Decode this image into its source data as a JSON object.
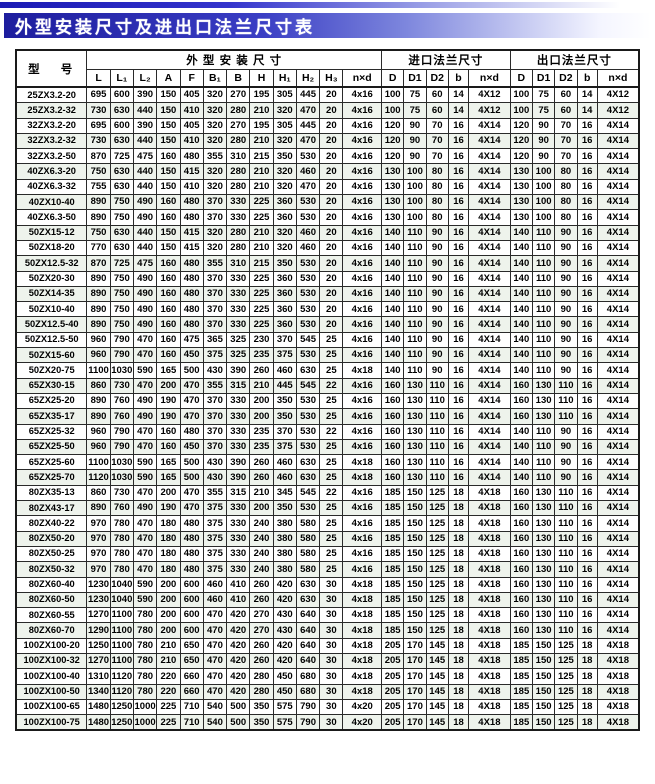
{
  "page": {
    "title": "外型安装尺寸及进出口法兰尺寸表"
  },
  "table": {
    "model_header": "型 号",
    "groups": [
      {
        "label": "外 型 安 装 尺 寸",
        "span": 12
      },
      {
        "label": "进口法兰尺寸",
        "span": 5
      },
      {
        "label": "出口法兰尺寸",
        "span": 5
      }
    ],
    "columns": [
      "L",
      "L₁",
      "L₂",
      "A",
      "F",
      "B₁",
      "B",
      "H",
      "H₁",
      "H₂",
      "H₃",
      "n×d",
      "D",
      "D1",
      "D2",
      "b",
      "n×d",
      "D",
      "D1",
      "D2",
      "b",
      "n×d"
    ],
    "rows": [
      {
        "model": "25ZX3.2-20",
        "values": [
          "695",
          "600",
          "390",
          "150",
          "405",
          "320",
          "270",
          "195",
          "305",
          "445",
          "20",
          "4x16",
          "100",
          "75",
          "60",
          "14",
          "4X12",
          "100",
          "75",
          "60",
          "14",
          "4X12"
        ]
      },
      {
        "model": "25ZX3.2-32",
        "values": [
          "730",
          "630",
          "440",
          "150",
          "410",
          "320",
          "280",
          "210",
          "320",
          "470",
          "20",
          "4x16",
          "100",
          "75",
          "60",
          "14",
          "4X12",
          "100",
          "75",
          "60",
          "14",
          "4X12"
        ]
      },
      {
        "model": "32ZX3.2-20",
        "values": [
          "695",
          "600",
          "390",
          "150",
          "405",
          "320",
          "270",
          "195",
          "305",
          "445",
          "20",
          "4x16",
          "120",
          "90",
          "70",
          "16",
          "4X14",
          "120",
          "90",
          "70",
          "16",
          "4X14"
        ]
      },
      {
        "model": "32ZX3.2-32",
        "values": [
          "730",
          "630",
          "440",
          "150",
          "410",
          "320",
          "280",
          "210",
          "320",
          "470",
          "20",
          "4x16",
          "120",
          "90",
          "70",
          "16",
          "4X14",
          "120",
          "90",
          "70",
          "16",
          "4X14"
        ]
      },
      {
        "model": "32ZX3.2-50",
        "values": [
          "870",
          "725",
          "475",
          "160",
          "480",
          "355",
          "310",
          "215",
          "350",
          "530",
          "20",
          "4x16",
          "120",
          "90",
          "70",
          "16",
          "4X14",
          "120",
          "90",
          "70",
          "16",
          "4X14"
        ]
      },
      {
        "model": "40ZX6.3-20",
        "values": [
          "750",
          "630",
          "440",
          "150",
          "415",
          "320",
          "280",
          "210",
          "320",
          "460",
          "20",
          "4x16",
          "130",
          "100",
          "80",
          "16",
          "4X14",
          "130",
          "100",
          "80",
          "16",
          "4X14"
        ]
      },
      {
        "model": "40ZX6.3-32",
        "values": [
          "755",
          "630",
          "440",
          "150",
          "410",
          "320",
          "280",
          "210",
          "320",
          "470",
          "20",
          "4x16",
          "130",
          "100",
          "80",
          "16",
          "4X14",
          "130",
          "100",
          "80",
          "16",
          "4X14"
        ]
      },
      {
        "model": "40ZX10-40",
        "values": [
          "890",
          "750",
          "490",
          "160",
          "480",
          "370",
          "330",
          "225",
          "360",
          "530",
          "20",
          "4x16",
          "130",
          "100",
          "80",
          "16",
          "4X14",
          "130",
          "100",
          "80",
          "16",
          "4X14"
        ]
      },
      {
        "model": "40ZX6.3-50",
        "values": [
          "890",
          "750",
          "490",
          "160",
          "480",
          "370",
          "330",
          "225",
          "360",
          "530",
          "20",
          "4x16",
          "130",
          "100",
          "80",
          "16",
          "4X14",
          "130",
          "100",
          "80",
          "16",
          "4X14"
        ]
      },
      {
        "model": "50ZX15-12",
        "values": [
          "750",
          "630",
          "440",
          "150",
          "415",
          "320",
          "280",
          "210",
          "320",
          "460",
          "20",
          "4x16",
          "140",
          "110",
          "90",
          "16",
          "4X14",
          "140",
          "110",
          "90",
          "16",
          "4X14"
        ]
      },
      {
        "model": "50ZX18-20",
        "values": [
          "770",
          "630",
          "440",
          "150",
          "415",
          "320",
          "280",
          "210",
          "320",
          "460",
          "20",
          "4x16",
          "140",
          "110",
          "90",
          "16",
          "4X14",
          "140",
          "110",
          "90",
          "16",
          "4X14"
        ]
      },
      {
        "model": "50ZX12.5-32",
        "values": [
          "870",
          "725",
          "475",
          "160",
          "480",
          "355",
          "310",
          "215",
          "350",
          "530",
          "20",
          "4x16",
          "140",
          "110",
          "90",
          "16",
          "4X14",
          "140",
          "110",
          "90",
          "16",
          "4X14"
        ]
      },
      {
        "model": "50ZX20-30",
        "values": [
          "890",
          "750",
          "490",
          "160",
          "480",
          "370",
          "330",
          "225",
          "360",
          "530",
          "20",
          "4x16",
          "140",
          "110",
          "90",
          "16",
          "4X14",
          "140",
          "110",
          "90",
          "16",
          "4X14"
        ]
      },
      {
        "model": "50ZX14-35",
        "values": [
          "890",
          "750",
          "490",
          "160",
          "480",
          "370",
          "330",
          "225",
          "360",
          "530",
          "20",
          "4x16",
          "140",
          "110",
          "90",
          "16",
          "4X14",
          "140",
          "110",
          "90",
          "16",
          "4X14"
        ]
      },
      {
        "model": "50ZX10-40",
        "values": [
          "890",
          "750",
          "490",
          "160",
          "480",
          "370",
          "330",
          "225",
          "360",
          "530",
          "20",
          "4x16",
          "140",
          "110",
          "90",
          "16",
          "4X14",
          "140",
          "110",
          "90",
          "16",
          "4X14"
        ]
      },
      {
        "model": "50ZX12.5-40",
        "values": [
          "890",
          "750",
          "490",
          "160",
          "480",
          "370",
          "330",
          "225",
          "360",
          "530",
          "20",
          "4x16",
          "140",
          "110",
          "90",
          "16",
          "4X14",
          "140",
          "110",
          "90",
          "16",
          "4X14"
        ]
      },
      {
        "model": "50ZX12.5-50",
        "values": [
          "960",
          "790",
          "470",
          "160",
          "475",
          "365",
          "325",
          "230",
          "370",
          "545",
          "25",
          "4x16",
          "140",
          "110",
          "90",
          "16",
          "4X14",
          "140",
          "110",
          "90",
          "16",
          "4X14"
        ]
      },
      {
        "model": "50ZX15-60",
        "values": [
          "960",
          "790",
          "470",
          "160",
          "450",
          "375",
          "325",
          "235",
          "375",
          "530",
          "25",
          "4x16",
          "140",
          "110",
          "90",
          "16",
          "4X14",
          "140",
          "110",
          "90",
          "16",
          "4X14"
        ]
      },
      {
        "model": "50ZX20-75",
        "values": [
          "1100",
          "1030",
          "590",
          "165",
          "500",
          "430",
          "390",
          "260",
          "460",
          "630",
          "25",
          "4x18",
          "140",
          "110",
          "90",
          "16",
          "4X14",
          "140",
          "110",
          "90",
          "16",
          "4X14"
        ]
      },
      {
        "model": "65ZX30-15",
        "values": [
          "860",
          "730",
          "470",
          "200",
          "470",
          "355",
          "315",
          "210",
          "445",
          "545",
          "22",
          "4x16",
          "160",
          "130",
          "110",
          "16",
          "4X14",
          "160",
          "130",
          "110",
          "16",
          "4X14"
        ]
      },
      {
        "model": "65ZX25-20",
        "values": [
          "890",
          "760",
          "490",
          "190",
          "470",
          "370",
          "330",
          "200",
          "350",
          "530",
          "25",
          "4x16",
          "160",
          "130",
          "110",
          "16",
          "4X14",
          "160",
          "130",
          "110",
          "16",
          "4X14"
        ]
      },
      {
        "model": "65ZX35-17",
        "values": [
          "890",
          "760",
          "490",
          "190",
          "470",
          "370",
          "330",
          "200",
          "350",
          "530",
          "25",
          "4x16",
          "160",
          "130",
          "110",
          "16",
          "4X14",
          "160",
          "130",
          "110",
          "16",
          "4X14"
        ]
      },
      {
        "model": "65ZX25-32",
        "values": [
          "960",
          "790",
          "470",
          "160",
          "480",
          "370",
          "330",
          "235",
          "370",
          "530",
          "22",
          "4x16",
          "160",
          "130",
          "110",
          "16",
          "4X14",
          "140",
          "110",
          "90",
          "16",
          "4X14"
        ]
      },
      {
        "model": "65ZX25-50",
        "values": [
          "960",
          "790",
          "470",
          "160",
          "450",
          "370",
          "330",
          "235",
          "375",
          "530",
          "25",
          "4x16",
          "160",
          "130",
          "110",
          "16",
          "4X14",
          "140",
          "110",
          "90",
          "16",
          "4X14"
        ]
      },
      {
        "model": "65ZX25-60",
        "values": [
          "1100",
          "1030",
          "590",
          "165",
          "500",
          "430",
          "390",
          "260",
          "460",
          "630",
          "25",
          "4x18",
          "160",
          "130",
          "110",
          "16",
          "4X14",
          "140",
          "110",
          "90",
          "16",
          "4X14"
        ]
      },
      {
        "model": "65ZX25-70",
        "values": [
          "1120",
          "1030",
          "590",
          "165",
          "500",
          "430",
          "390",
          "260",
          "460",
          "630",
          "25",
          "4x18",
          "160",
          "130",
          "110",
          "16",
          "4X14",
          "140",
          "110",
          "90",
          "16",
          "4X14"
        ]
      },
      {
        "model": "80ZX35-13",
        "values": [
          "860",
          "730",
          "470",
          "200",
          "470",
          "355",
          "315",
          "210",
          "345",
          "545",
          "22",
          "4x16",
          "185",
          "150",
          "125",
          "18",
          "4X18",
          "160",
          "130",
          "110",
          "16",
          "4X14"
        ]
      },
      {
        "model": "80ZX43-17",
        "values": [
          "890",
          "760",
          "490",
          "190",
          "470",
          "375",
          "330",
          "200",
          "350",
          "530",
          "25",
          "4x16",
          "185",
          "150",
          "125",
          "18",
          "4X18",
          "160",
          "130",
          "110",
          "16",
          "4X14"
        ]
      },
      {
        "model": "80ZX40-22",
        "values": [
          "970",
          "780",
          "470",
          "180",
          "480",
          "375",
          "330",
          "240",
          "380",
          "580",
          "25",
          "4x16",
          "185",
          "150",
          "125",
          "18",
          "4X18",
          "160",
          "130",
          "110",
          "16",
          "4X14"
        ]
      },
      {
        "model": "80ZX50-20",
        "values": [
          "970",
          "780",
          "470",
          "180",
          "480",
          "375",
          "330",
          "240",
          "380",
          "580",
          "25",
          "4x16",
          "185",
          "150",
          "125",
          "18",
          "4X18",
          "160",
          "130",
          "110",
          "16",
          "4X14"
        ]
      },
      {
        "model": "80ZX50-25",
        "values": [
          "970",
          "780",
          "470",
          "180",
          "480",
          "375",
          "330",
          "240",
          "380",
          "580",
          "25",
          "4x16",
          "185",
          "150",
          "125",
          "18",
          "4X18",
          "160",
          "130",
          "110",
          "16",
          "4X14"
        ]
      },
      {
        "model": "80ZX50-32",
        "values": [
          "970",
          "780",
          "470",
          "180",
          "480",
          "375",
          "330",
          "240",
          "380",
          "580",
          "25",
          "4x16",
          "185",
          "150",
          "125",
          "18",
          "4X18",
          "160",
          "130",
          "110",
          "16",
          "4X14"
        ]
      },
      {
        "model": "80ZX60-40",
        "values": [
          "1230",
          "1040",
          "590",
          "200",
          "600",
          "460",
          "410",
          "260",
          "420",
          "630",
          "30",
          "4x18",
          "185",
          "150",
          "125",
          "18",
          "4X18",
          "160",
          "130",
          "110",
          "16",
          "4X14"
        ]
      },
      {
        "model": "80ZX60-50",
        "values": [
          "1230",
          "1040",
          "590",
          "200",
          "600",
          "460",
          "410",
          "260",
          "420",
          "630",
          "30",
          "4x18",
          "185",
          "150",
          "125",
          "18",
          "4X18",
          "160",
          "130",
          "110",
          "16",
          "4X14"
        ]
      },
      {
        "model": "80ZX60-55",
        "values": [
          "1270",
          "1100",
          "780",
          "200",
          "600",
          "470",
          "420",
          "270",
          "430",
          "640",
          "30",
          "4x18",
          "185",
          "150",
          "125",
          "18",
          "4X18",
          "160",
          "130",
          "110",
          "16",
          "4X14"
        ]
      },
      {
        "model": "80ZX60-70",
        "values": [
          "1290",
          "1100",
          "780",
          "200",
          "600",
          "470",
          "420",
          "270",
          "430",
          "640",
          "30",
          "4x18",
          "185",
          "150",
          "125",
          "18",
          "4X18",
          "160",
          "130",
          "110",
          "16",
          "4X14"
        ]
      },
      {
        "model": "100ZX100-20",
        "values": [
          "1250",
          "1100",
          "780",
          "210",
          "650",
          "470",
          "420",
          "260",
          "420",
          "640",
          "30",
          "4x18",
          "205",
          "170",
          "145",
          "18",
          "4X18",
          "185",
          "150",
          "125",
          "18",
          "4X18"
        ]
      },
      {
        "model": "100ZX100-32",
        "values": [
          "1270",
          "1100",
          "780",
          "210",
          "650",
          "470",
          "420",
          "260",
          "420",
          "640",
          "30",
          "4x18",
          "205",
          "170",
          "145",
          "18",
          "4X18",
          "185",
          "150",
          "125",
          "18",
          "4X18"
        ]
      },
      {
        "model": "100ZX100-40",
        "values": [
          "1310",
          "1120",
          "780",
          "220",
          "660",
          "470",
          "420",
          "280",
          "450",
          "680",
          "30",
          "4x18",
          "205",
          "170",
          "145",
          "18",
          "4X18",
          "185",
          "150",
          "125",
          "18",
          "4X18"
        ]
      },
      {
        "model": "100ZX100-50",
        "values": [
          "1340",
          "1120",
          "780",
          "220",
          "660",
          "470",
          "420",
          "280",
          "450",
          "680",
          "30",
          "4x18",
          "205",
          "170",
          "145",
          "18",
          "4X18",
          "185",
          "150",
          "125",
          "18",
          "4X18"
        ]
      },
      {
        "model": "100ZX100-65",
        "values": [
          "1480",
          "1250",
          "1000",
          "225",
          "710",
          "540",
          "500",
          "350",
          "575",
          "790",
          "30",
          "4x20",
          "205",
          "170",
          "145",
          "18",
          "4X18",
          "185",
          "150",
          "125",
          "18",
          "4X18"
        ]
      },
      {
        "model": "100ZX100-75",
        "values": [
          "1480",
          "1250",
          "1000",
          "225",
          "710",
          "540",
          "500",
          "350",
          "575",
          "790",
          "30",
          "4x20",
          "205",
          "170",
          "145",
          "18",
          "4X18",
          "185",
          "150",
          "125",
          "18",
          "4X18"
        ]
      }
    ]
  }
}
